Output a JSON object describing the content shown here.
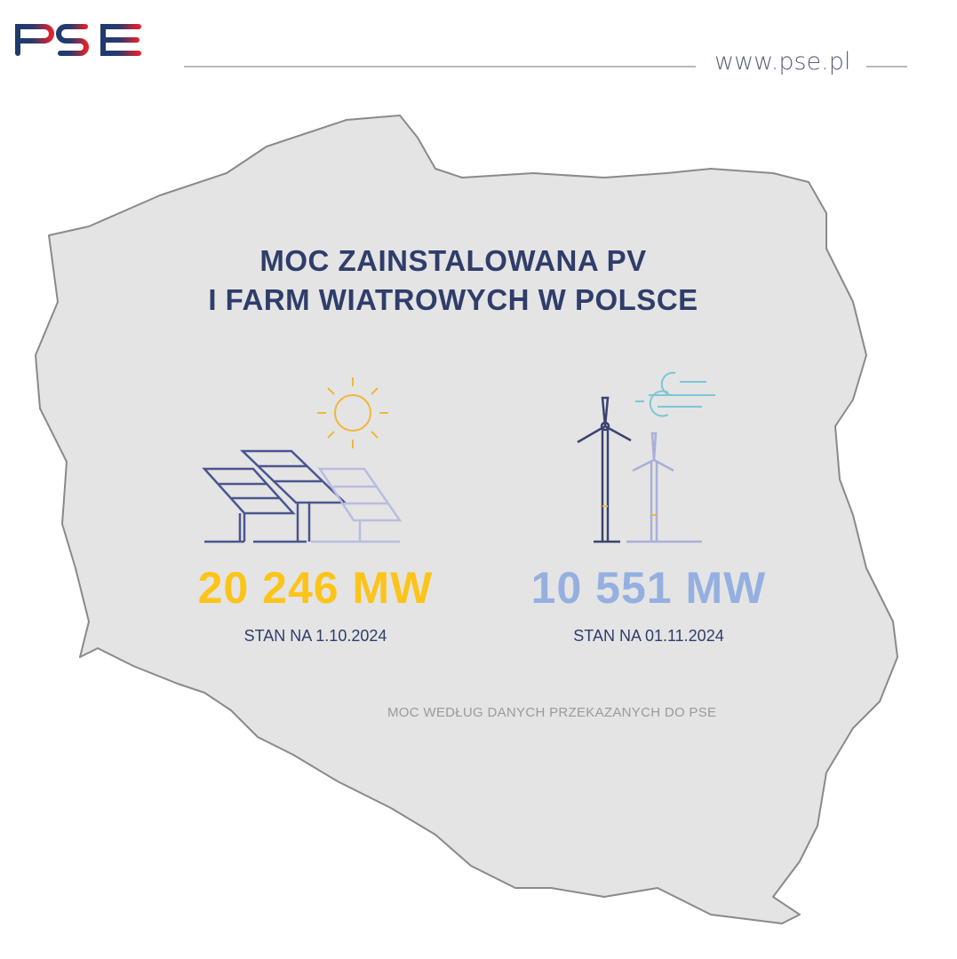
{
  "header": {
    "logo_text": "PSE",
    "url": "www.pse.pl"
  },
  "title": {
    "line1": "MOC ZAINSTALOWANA PV",
    "line2": "I FARM WIATROWYCH W POLSCE"
  },
  "pv": {
    "icon": "solar-panel-sun-icon",
    "value": "20 246 MW",
    "date": "STAN NA 1.10.2024",
    "color": "#fcc419"
  },
  "wind": {
    "icon": "wind-turbine-icon",
    "value": "10 551 MW",
    "date": "STAN NA 01.11.2024",
    "color": "#95b0e0"
  },
  "note": "MOC WEDŁUG DANYCH PRZEKAZANYCH DO PSE",
  "colors": {
    "map_fill": "#e4e4e4",
    "map_outline": "#8a8a8a",
    "navy": "#2f3d6b",
    "logo_red": "#e3222b",
    "logo_blue": "#1f3a6e"
  }
}
